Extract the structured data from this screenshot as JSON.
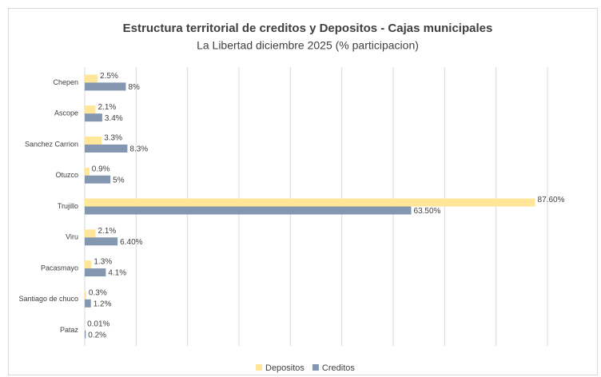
{
  "chart_data": {
    "type": "bar",
    "orientation": "horizontal",
    "title": "Estructura territorial de creditos y Depositos - Cajas municipales",
    "subtitle": "La Libertad diciembre 2025 (% participacion)",
    "categories": [
      "Chepen",
      "Ascope",
      "Sanchez Carrion",
      "Otuzco",
      "Trujillo",
      "Viru",
      "Pacasmayo",
      "Santiago de chuco",
      "Pataz"
    ],
    "series": [
      {
        "name": "Depositos",
        "color": "#ffe699",
        "values": [
          2.5,
          2.1,
          3.3,
          0.9,
          87.6,
          2.1,
          1.3,
          0.3,
          0.01
        ],
        "value_labels": [
          "2.5%",
          "2.1%",
          "3.3%",
          "0.9%",
          "87.60%",
          "2.1%",
          "1.3%",
          "0.3%",
          "0.01%"
        ]
      },
      {
        "name": "Creditos",
        "color": "#8497b0",
        "values": [
          8,
          3.4,
          8.3,
          5,
          63.5,
          6.4,
          4.1,
          1.2,
          0.2
        ],
        "value_labels": [
          "8%",
          "3.4%",
          "8.3%",
          "5%",
          "63.50%",
          "6.40%",
          "4.1%",
          "1.2%",
          "0.2%"
        ]
      }
    ],
    "xlim": [
      0,
      90
    ],
    "xticks": [
      0,
      10,
      20,
      30,
      40,
      50,
      60,
      70,
      80,
      90
    ],
    "grid": true,
    "legend": "bottom"
  }
}
